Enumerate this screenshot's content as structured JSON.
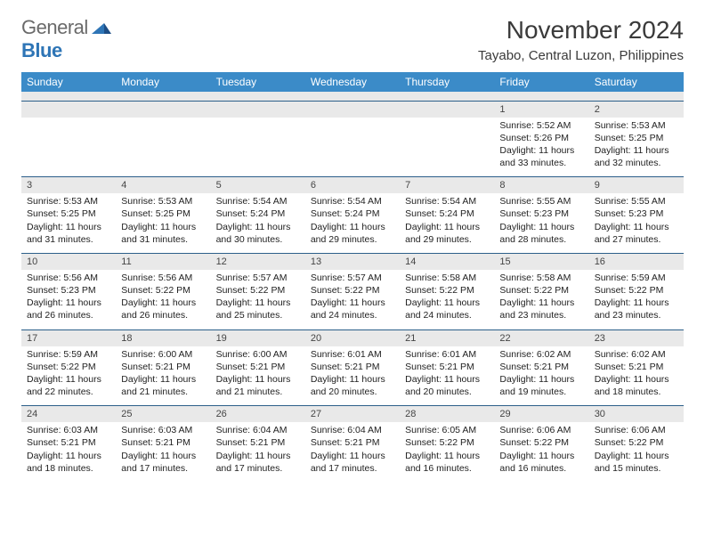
{
  "logo": {
    "general": "General",
    "blue": "Blue"
  },
  "title": "November 2024",
  "location": "Tayabo, Central Luzon, Philippines",
  "colors": {
    "header_bg": "#3b8bc8",
    "header_text": "#ffffff",
    "daynum_bg": "#e9e9e9",
    "row_divider": "#2c5f8a",
    "text": "#222222",
    "logo_gray": "#6a6a6a",
    "logo_blue": "#2e75b6"
  },
  "dayNames": [
    "Sunday",
    "Monday",
    "Tuesday",
    "Wednesday",
    "Thursday",
    "Friday",
    "Saturday"
  ],
  "weeks": [
    [
      null,
      null,
      null,
      null,
      null,
      {
        "n": "1",
        "sr": "5:52 AM",
        "ss": "5:26 PM",
        "dl": "11 hours and 33 minutes."
      },
      {
        "n": "2",
        "sr": "5:53 AM",
        "ss": "5:25 PM",
        "dl": "11 hours and 32 minutes."
      }
    ],
    [
      {
        "n": "3",
        "sr": "5:53 AM",
        "ss": "5:25 PM",
        "dl": "11 hours and 31 minutes."
      },
      {
        "n": "4",
        "sr": "5:53 AM",
        "ss": "5:25 PM",
        "dl": "11 hours and 31 minutes."
      },
      {
        "n": "5",
        "sr": "5:54 AM",
        "ss": "5:24 PM",
        "dl": "11 hours and 30 minutes."
      },
      {
        "n": "6",
        "sr": "5:54 AM",
        "ss": "5:24 PM",
        "dl": "11 hours and 29 minutes."
      },
      {
        "n": "7",
        "sr": "5:54 AM",
        "ss": "5:24 PM",
        "dl": "11 hours and 29 minutes."
      },
      {
        "n": "8",
        "sr": "5:55 AM",
        "ss": "5:23 PM",
        "dl": "11 hours and 28 minutes."
      },
      {
        "n": "9",
        "sr": "5:55 AM",
        "ss": "5:23 PM",
        "dl": "11 hours and 27 minutes."
      }
    ],
    [
      {
        "n": "10",
        "sr": "5:56 AM",
        "ss": "5:23 PM",
        "dl": "11 hours and 26 minutes."
      },
      {
        "n": "11",
        "sr": "5:56 AM",
        "ss": "5:22 PM",
        "dl": "11 hours and 26 minutes."
      },
      {
        "n": "12",
        "sr": "5:57 AM",
        "ss": "5:22 PM",
        "dl": "11 hours and 25 minutes."
      },
      {
        "n": "13",
        "sr": "5:57 AM",
        "ss": "5:22 PM",
        "dl": "11 hours and 24 minutes."
      },
      {
        "n": "14",
        "sr": "5:58 AM",
        "ss": "5:22 PM",
        "dl": "11 hours and 24 minutes."
      },
      {
        "n": "15",
        "sr": "5:58 AM",
        "ss": "5:22 PM",
        "dl": "11 hours and 23 minutes."
      },
      {
        "n": "16",
        "sr": "5:59 AM",
        "ss": "5:22 PM",
        "dl": "11 hours and 23 minutes."
      }
    ],
    [
      {
        "n": "17",
        "sr": "5:59 AM",
        "ss": "5:22 PM",
        "dl": "11 hours and 22 minutes."
      },
      {
        "n": "18",
        "sr": "6:00 AM",
        "ss": "5:21 PM",
        "dl": "11 hours and 21 minutes."
      },
      {
        "n": "19",
        "sr": "6:00 AM",
        "ss": "5:21 PM",
        "dl": "11 hours and 21 minutes."
      },
      {
        "n": "20",
        "sr": "6:01 AM",
        "ss": "5:21 PM",
        "dl": "11 hours and 20 minutes."
      },
      {
        "n": "21",
        "sr": "6:01 AM",
        "ss": "5:21 PM",
        "dl": "11 hours and 20 minutes."
      },
      {
        "n": "22",
        "sr": "6:02 AM",
        "ss": "5:21 PM",
        "dl": "11 hours and 19 minutes."
      },
      {
        "n": "23",
        "sr": "6:02 AM",
        "ss": "5:21 PM",
        "dl": "11 hours and 18 minutes."
      }
    ],
    [
      {
        "n": "24",
        "sr": "6:03 AM",
        "ss": "5:21 PM",
        "dl": "11 hours and 18 minutes."
      },
      {
        "n": "25",
        "sr": "6:03 AM",
        "ss": "5:21 PM",
        "dl": "11 hours and 17 minutes."
      },
      {
        "n": "26",
        "sr": "6:04 AM",
        "ss": "5:21 PM",
        "dl": "11 hours and 17 minutes."
      },
      {
        "n": "27",
        "sr": "6:04 AM",
        "ss": "5:21 PM",
        "dl": "11 hours and 17 minutes."
      },
      {
        "n": "28",
        "sr": "6:05 AM",
        "ss": "5:22 PM",
        "dl": "11 hours and 16 minutes."
      },
      {
        "n": "29",
        "sr": "6:06 AM",
        "ss": "5:22 PM",
        "dl": "11 hours and 16 minutes."
      },
      {
        "n": "30",
        "sr": "6:06 AM",
        "ss": "5:22 PM",
        "dl": "11 hours and 15 minutes."
      }
    ]
  ],
  "labels": {
    "sunrise": "Sunrise:",
    "sunset": "Sunset:",
    "daylight": "Daylight:"
  }
}
